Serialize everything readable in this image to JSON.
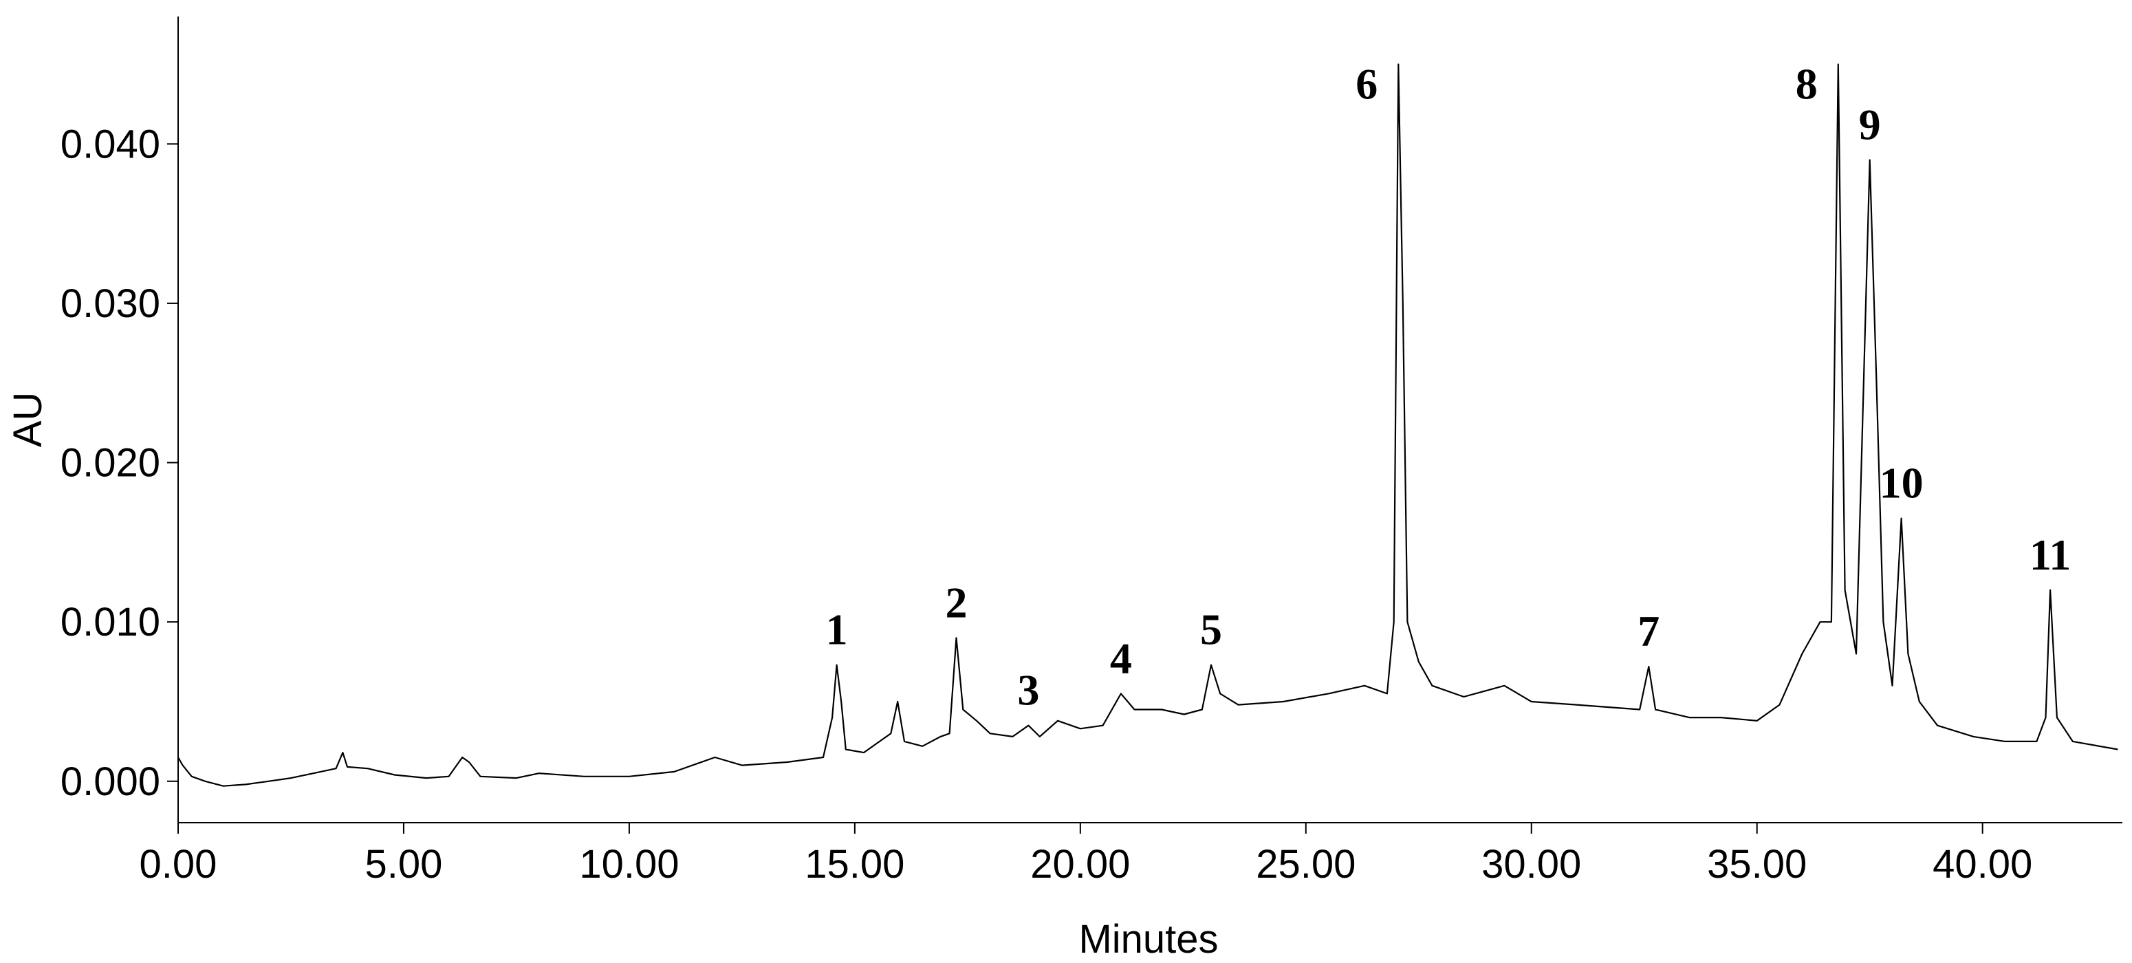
{
  "chart_data": {
    "type": "line",
    "xlabel": "Minutes",
    "ylabel": "AU",
    "xlim": [
      0,
      43.1
    ],
    "ylim": [
      -0.0026,
      0.048
    ],
    "xticks": [
      {
        "value": 0,
        "label": "0.00"
      },
      {
        "value": 5,
        "label": "5.00"
      },
      {
        "value": 10,
        "label": "10.00"
      },
      {
        "value": 15,
        "label": "15.00"
      },
      {
        "value": 20,
        "label": "20.00"
      },
      {
        "value": 25,
        "label": "25.00"
      },
      {
        "value": 30,
        "label": "30.00"
      },
      {
        "value": 35,
        "label": "35.00"
      },
      {
        "value": 40,
        "label": "40.00"
      }
    ],
    "yticks": [
      {
        "value": 0,
        "label": "0.000"
      },
      {
        "value": 0.01,
        "label": "0.010"
      },
      {
        "value": 0.02,
        "label": "0.020"
      },
      {
        "value": 0.03,
        "label": "0.030"
      },
      {
        "value": 0.04,
        "label": "0.040"
      }
    ],
    "grid": false,
    "series": [
      {
        "color": "#000000",
        "x": [
          0.0,
          0.1,
          0.3,
          0.6,
          1.0,
          1.5,
          2.0,
          2.5,
          3.0,
          3.5,
          3.65,
          3.75,
          4.2,
          4.8,
          5.5,
          6.0,
          6.3,
          6.45,
          6.7,
          7.5,
          8.0,
          9.0,
          10.0,
          11.0,
          11.9,
          12.5,
          13.5,
          14.3,
          14.5,
          14.6,
          14.7,
          14.8,
          15.2,
          15.8,
          15.95,
          16.1,
          16.5,
          16.9,
          17.1,
          17.25,
          17.4,
          17.7,
          18.0,
          18.5,
          18.85,
          19.1,
          19.5,
          20.0,
          20.5,
          20.9,
          21.2,
          21.8,
          22.3,
          22.7,
          22.9,
          23.1,
          23.5,
          24.5,
          25.5,
          26.3,
          26.8,
          26.95,
          27.05,
          27.15,
          27.25,
          27.5,
          27.8,
          28.5,
          29.4,
          30.0,
          31.0,
          32.4,
          32.6,
          32.75,
          33.5,
          34.2,
          35.0,
          35.5,
          36.0,
          36.4,
          36.65,
          36.8,
          36.95,
          37.2,
          37.5,
          37.65,
          37.8,
          38.0,
          38.2,
          38.35,
          38.6,
          39.0,
          39.8,
          40.5,
          41.2,
          41.4,
          41.5,
          41.65,
          42.0,
          43.0
        ],
        "values": [
          0.0015,
          0.001,
          0.0003,
          0.0,
          -0.0003,
          -0.0002,
          0.0,
          0.0002,
          0.0005,
          0.0008,
          0.0018,
          0.0009,
          0.0008,
          0.0004,
          0.0002,
          0.0003,
          0.0015,
          0.0012,
          0.0003,
          0.0002,
          0.0005,
          0.0003,
          0.0003,
          0.0006,
          0.0015,
          0.001,
          0.0012,
          0.0015,
          0.004,
          0.0073,
          0.005,
          0.002,
          0.0018,
          0.003,
          0.005,
          0.0025,
          0.0022,
          0.0028,
          0.003,
          0.009,
          0.0045,
          0.0038,
          0.003,
          0.0028,
          0.0035,
          0.0028,
          0.0038,
          0.0033,
          0.0035,
          0.0055,
          0.0045,
          0.0045,
          0.0042,
          0.0045,
          0.0073,
          0.0055,
          0.0048,
          0.005,
          0.0055,
          0.006,
          0.0055,
          0.01,
          0.045,
          0.03,
          0.01,
          0.0075,
          0.006,
          0.0053,
          0.006,
          0.005,
          0.0048,
          0.0045,
          0.0072,
          0.0045,
          0.004,
          0.004,
          0.0038,
          0.0048,
          0.008,
          0.01,
          0.01,
          0.045,
          0.012,
          0.008,
          0.039,
          0.025,
          0.01,
          0.006,
          0.0165,
          0.008,
          0.005,
          0.0035,
          0.0028,
          0.0025,
          0.0025,
          0.004,
          0.012,
          0.004,
          0.0025,
          0.002
        ]
      }
    ],
    "annotations": [
      {
        "text": "1",
        "x": 14.6
      },
      {
        "text": "2",
        "x": 17.25
      },
      {
        "text": "3",
        "x": 18.85
      },
      {
        "text": "4",
        "x": 20.9
      },
      {
        "text": "5",
        "x": 22.9
      },
      {
        "text": "6",
        "x": 27.05
      },
      {
        "text": "7",
        "x": 32.6
      },
      {
        "text": "8",
        "x": 36.8
      },
      {
        "text": "9",
        "x": 37.5
      },
      {
        "text": "10",
        "x": 38.2
      },
      {
        "text": "11",
        "x": 41.5
      }
    ]
  }
}
